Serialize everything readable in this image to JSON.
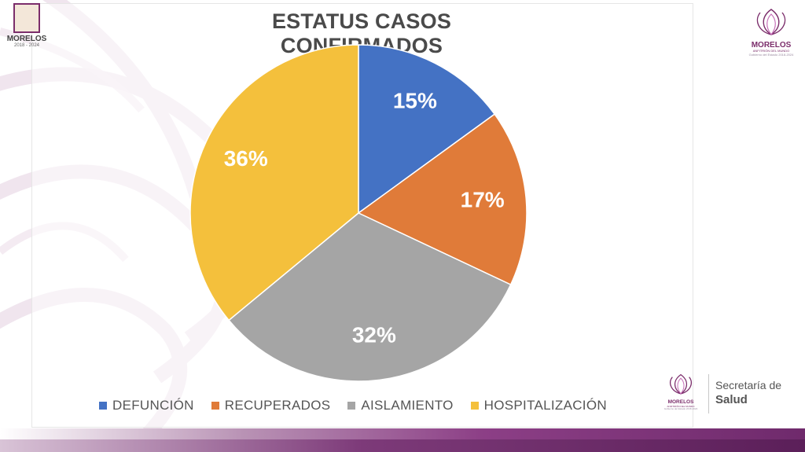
{
  "chart_data": {
    "type": "pie",
    "title": "ESTATUS CASOS CONFIRMADOS",
    "categories": [
      "DEFUNCIÓN",
      "RECUPERADOS",
      "AISLAMIENTO",
      "HOSPITALIZACIÓN"
    ],
    "values": [
      15,
      17,
      32,
      36
    ],
    "labels": [
      "15%",
      "17%",
      "32%",
      "36%"
    ],
    "colors": [
      "#4472c4",
      "#e07b39",
      "#a5a5a5",
      "#f4c03c"
    ],
    "legend": "bottom"
  },
  "header": {
    "left_logo": {
      "name": "MORELOS",
      "years": "2018 - 2024"
    },
    "right_logo": {
      "name": "MORELOS",
      "subtitle": "ANFITRIÓN DEL MUNDO",
      "tagline": "Gobierno del Estado 2018-2024"
    }
  },
  "footer": {
    "logo": {
      "name": "MORELOS",
      "subtitle": "ANFITRIÓN DEL MUNDO",
      "tagline": "Gobierno del Estado 2018-2024"
    },
    "secretaria": "Secretaría de",
    "salud": "Salud"
  }
}
